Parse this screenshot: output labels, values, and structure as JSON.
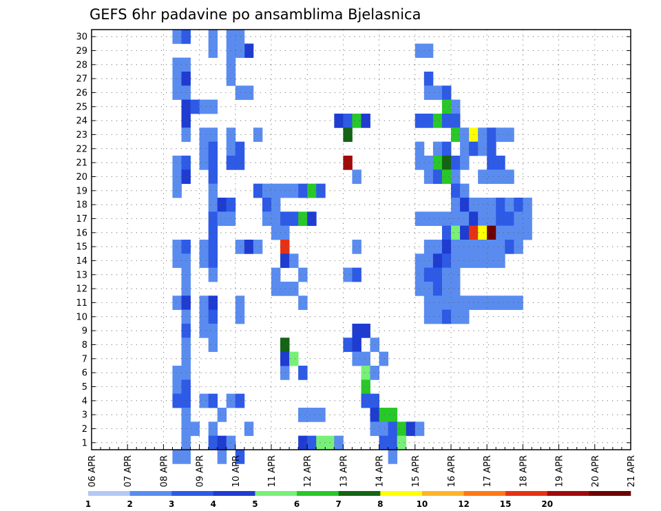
{
  "chart_data": {
    "type": "heatmap",
    "title": "GEFS 6hr padavine po ansamblima Bjelasnica",
    "xlabel": "",
    "ylabel": "",
    "x_ticks": [
      "06 APR",
      "07 APR",
      "08 APR",
      "09 APR",
      "10 APR",
      "11 APR",
      "12 APR",
      "13 APR",
      "14 APR",
      "15 APR",
      "16 APR",
      "17 APR",
      "18 APR",
      "19 APR",
      "20 APR",
      "21 APR"
    ],
    "x_range": [
      "06 APR 00",
      "21 APR 00"
    ],
    "time_step_hours": 6,
    "y_ticks": [
      1,
      2,
      3,
      4,
      5,
      6,
      7,
      8,
      9,
      10,
      11,
      12,
      13,
      14,
      15,
      16,
      17,
      18,
      19,
      20,
      21,
      22,
      23,
      24,
      25,
      26,
      27,
      28,
      29,
      30
    ],
    "ylim": [
      0.5,
      30.5
    ],
    "grid": true,
    "colorbar": {
      "position": "bottom",
      "boundaries": [
        1,
        2,
        3,
        4,
        5,
        6,
        7,
        8,
        10,
        12,
        15,
        20
      ],
      "labels": [
        "1",
        "2",
        "3",
        "4",
        "5",
        "6",
        "7",
        "8",
        "10",
        "12",
        "15",
        "20"
      ],
      "colors": [
        "#b4c8f5",
        "#5a8cf0",
        "#2d5ae6",
        "#1e3cd2",
        "#78f078",
        "#28c828",
        "#146414",
        "#ffff00",
        "#ffb428",
        "#ff7814",
        "#e63214",
        "#a00a0a",
        "#6e0000"
      ]
    },
    "cells_note": "each cell = [time_index_from_06_APR_00_in_6h_steps, member, color_class_index]",
    "cells": [
      [
        9,
        30,
        1
      ],
      [
        10,
        30,
        2
      ],
      [
        13,
        30,
        1
      ],
      [
        15,
        30,
        1
      ],
      [
        16,
        30,
        1
      ],
      [
        16,
        29,
        1
      ],
      [
        17,
        29,
        3
      ],
      [
        13,
        29,
        1
      ],
      [
        15,
        29,
        1
      ],
      [
        16,
        29,
        1
      ],
      [
        9,
        28,
        1
      ],
      [
        10,
        28,
        1
      ],
      [
        15,
        28,
        1
      ],
      [
        9,
        27,
        1
      ],
      [
        10,
        27,
        3
      ],
      [
        15,
        27,
        1
      ],
      [
        9,
        26,
        1
      ],
      [
        10,
        26,
        1
      ],
      [
        16,
        26,
        1
      ],
      [
        17,
        26,
        1
      ],
      [
        10,
        25,
        3
      ],
      [
        11,
        25,
        2
      ],
      [
        12,
        25,
        1
      ],
      [
        13,
        25,
        1
      ],
      [
        10,
        24,
        3
      ],
      [
        10,
        23,
        1
      ],
      [
        12,
        23,
        1
      ],
      [
        13,
        23,
        1
      ],
      [
        15,
        23,
        1
      ],
      [
        18,
        23,
        1
      ],
      [
        12,
        22,
        1
      ],
      [
        13,
        22,
        2
      ],
      [
        15,
        22,
        1
      ],
      [
        16,
        22,
        2
      ],
      [
        9,
        21,
        1
      ],
      [
        10,
        21,
        2
      ],
      [
        12,
        21,
        1
      ],
      [
        13,
        21,
        2
      ],
      [
        15,
        21,
        2
      ],
      [
        16,
        21,
        2
      ],
      [
        9,
        20,
        1
      ],
      [
        10,
        20,
        3
      ],
      [
        13,
        20,
        2
      ],
      [
        9,
        19,
        1
      ],
      [
        13,
        19,
        1
      ],
      [
        13,
        18,
        1
      ],
      [
        14,
        18,
        3
      ],
      [
        15,
        18,
        2
      ],
      [
        13,
        17,
        2
      ],
      [
        14,
        17,
        1
      ],
      [
        15,
        17,
        1
      ],
      [
        13,
        16,
        2
      ],
      [
        9,
        15,
        1
      ],
      [
        10,
        15,
        2
      ],
      [
        12,
        15,
        1
      ],
      [
        13,
        15,
        2
      ],
      [
        16,
        15,
        1
      ],
      [
        17,
        15,
        3
      ],
      [
        18,
        15,
        1
      ],
      [
        9,
        14,
        1
      ],
      [
        10,
        14,
        1
      ],
      [
        12,
        14,
        1
      ],
      [
        13,
        14,
        2
      ],
      [
        10,
        13,
        1
      ],
      [
        13,
        13,
        1
      ],
      [
        10,
        12,
        1
      ],
      [
        9,
        11,
        1
      ],
      [
        10,
        11,
        3
      ],
      [
        12,
        11,
        1
      ],
      [
        13,
        11,
        3
      ],
      [
        16,
        11,
        1
      ],
      [
        10,
        10,
        1
      ],
      [
        12,
        10,
        1
      ],
      [
        13,
        10,
        2
      ],
      [
        16,
        10,
        1
      ],
      [
        10,
        9,
        2
      ],
      [
        12,
        9,
        1
      ],
      [
        13,
        9,
        1
      ],
      [
        10,
        8,
        1
      ],
      [
        13,
        8,
        1
      ],
      [
        10,
        7,
        1
      ],
      [
        9,
        6,
        1
      ],
      [
        10,
        6,
        1
      ],
      [
        9,
        5,
        1
      ],
      [
        10,
        5,
        2
      ],
      [
        9,
        4,
        2
      ],
      [
        10,
        4,
        2
      ],
      [
        12,
        4,
        1
      ],
      [
        13,
        4,
        2
      ],
      [
        15,
        4,
        1
      ],
      [
        16,
        4,
        2
      ],
      [
        10,
        3,
        1
      ],
      [
        14,
        3,
        1
      ],
      [
        10,
        2,
        1
      ],
      [
        11,
        2,
        1
      ],
      [
        13,
        2,
        1
      ],
      [
        17,
        2,
        1
      ],
      [
        10,
        1,
        1
      ],
      [
        13,
        1,
        2
      ],
      [
        14,
        1,
        3
      ],
      [
        15,
        1,
        1
      ],
      [
        9,
        0,
        1
      ],
      [
        10,
        0,
        1
      ],
      [
        14,
        0,
        1
      ],
      [
        16,
        0,
        2
      ],
      [
        23,
        1,
        3
      ],
      [
        24,
        1,
        2
      ],
      [
        25,
        1,
        4
      ],
      [
        26,
        1,
        4
      ],
      [
        27,
        1,
        1
      ],
      [
        23,
        3,
        1
      ],
      [
        25,
        3,
        1
      ],
      [
        21,
        6,
        1
      ],
      [
        21,
        7,
        3
      ],
      [
        21,
        8,
        6
      ],
      [
        22,
        7,
        4
      ],
      [
        18,
        19,
        2
      ],
      [
        19,
        19,
        1
      ],
      [
        20,
        19,
        1
      ],
      [
        21,
        19,
        1
      ],
      [
        22,
        19,
        1
      ],
      [
        23,
        19,
        2
      ],
      [
        24,
        19,
        5
      ],
      [
        25,
        19,
        2
      ],
      [
        19,
        18,
        2
      ],
      [
        20,
        18,
        1
      ],
      [
        19,
        17,
        1
      ],
      [
        20,
        17,
        1
      ],
      [
        21,
        17,
        2
      ],
      [
        22,
        17,
        2
      ],
      [
        23,
        17,
        5
      ],
      [
        24,
        17,
        3
      ],
      [
        20,
        16,
        1
      ],
      [
        21,
        16,
        1
      ],
      [
        21,
        15,
        10
      ],
      [
        21,
        14,
        3
      ],
      [
        22,
        14,
        1
      ],
      [
        20,
        13,
        1
      ],
      [
        23,
        13,
        1
      ],
      [
        20,
        12,
        1
      ],
      [
        21,
        12,
        1
      ],
      [
        22,
        12,
        1
      ],
      [
        23,
        11,
        1
      ],
      [
        23,
        6,
        2
      ],
      [
        23,
        3,
        1
      ],
      [
        24,
        3,
        1
      ],
      [
        27,
        24,
        3
      ],
      [
        28,
        24,
        2
      ],
      [
        29,
        24,
        5
      ],
      [
        30,
        24,
        3
      ],
      [
        28,
        23,
        6
      ],
      [
        28,
        21,
        11
      ],
      [
        29,
        20,
        1
      ],
      [
        29,
        15,
        1
      ],
      [
        28,
        13,
        1
      ],
      [
        29,
        13,
        2
      ],
      [
        29,
        9,
        3
      ],
      [
        30,
        9,
        3
      ],
      [
        28,
        8,
        2
      ],
      [
        29,
        8,
        3
      ],
      [
        31,
        8,
        1
      ],
      [
        29,
        7,
        1
      ],
      [
        30,
        7,
        1
      ],
      [
        32,
        7,
        1
      ],
      [
        30,
        6,
        4
      ],
      [
        31,
        6,
        1
      ],
      [
        30,
        5,
        5
      ],
      [
        30,
        4,
        2
      ],
      [
        31,
        4,
        2
      ],
      [
        31,
        3,
        3
      ],
      [
        32,
        3,
        5
      ],
      [
        33,
        3,
        5
      ],
      [
        31,
        2,
        1
      ],
      [
        32,
        2,
        1
      ],
      [
        33,
        2,
        2
      ],
      [
        34,
        2,
        5
      ],
      [
        35,
        2,
        3
      ],
      [
        36,
        2,
        1
      ],
      [
        32,
        1,
        2
      ],
      [
        33,
        1,
        2
      ],
      [
        34,
        1,
        4
      ],
      [
        33,
        0,
        1
      ],
      [
        36,
        29,
        1
      ],
      [
        37,
        29,
        1
      ],
      [
        37,
        27,
        2
      ],
      [
        37,
        26,
        1
      ],
      [
        38,
        26,
        1
      ],
      [
        39,
        26,
        2
      ],
      [
        39,
        25,
        5
      ],
      [
        40,
        25,
        1
      ],
      [
        36,
        24,
        2
      ],
      [
        37,
        24,
        2
      ],
      [
        38,
        24,
        5
      ],
      [
        39,
        24,
        2
      ],
      [
        40,
        24,
        2
      ],
      [
        40,
        23,
        5
      ],
      [
        41,
        23,
        1
      ],
      [
        42,
        23,
        7
      ],
      [
        43,
        23,
        1
      ],
      [
        44,
        23,
        2
      ],
      [
        45,
        23,
        1
      ],
      [
        46,
        23,
        1
      ],
      [
        36,
        22,
        1
      ],
      [
        38,
        22,
        1
      ],
      [
        39,
        22,
        2
      ],
      [
        41,
        22,
        1
      ],
      [
        42,
        22,
        2
      ],
      [
        43,
        22,
        1
      ],
      [
        44,
        22,
        2
      ],
      [
        36,
        21,
        1
      ],
      [
        37,
        21,
        1
      ],
      [
        38,
        21,
        5
      ],
      [
        39,
        21,
        6
      ],
      [
        40,
        21,
        2
      ],
      [
        41,
        21,
        1
      ],
      [
        44,
        21,
        2
      ],
      [
        45,
        21,
        2
      ],
      [
        37,
        20,
        1
      ],
      [
        38,
        20,
        2
      ],
      [
        39,
        20,
        5
      ],
      [
        40,
        20,
        1
      ],
      [
        43,
        20,
        1
      ],
      [
        44,
        20,
        1
      ],
      [
        45,
        20,
        1
      ],
      [
        46,
        20,
        1
      ],
      [
        40,
        19,
        2
      ],
      [
        41,
        19,
        1
      ],
      [
        40,
        18,
        1
      ],
      [
        41,
        18,
        3
      ],
      [
        42,
        18,
        1
      ],
      [
        43,
        18,
        1
      ],
      [
        44,
        18,
        1
      ],
      [
        45,
        18,
        2
      ],
      [
        46,
        18,
        1
      ],
      [
        47,
        18,
        2
      ],
      [
        48,
        18,
        1
      ],
      [
        36,
        17,
        1
      ],
      [
        37,
        17,
        1
      ],
      [
        38,
        17,
        1
      ],
      [
        39,
        17,
        1
      ],
      [
        40,
        17,
        1
      ],
      [
        41,
        17,
        1
      ],
      [
        42,
        17,
        3
      ],
      [
        43,
        17,
        1
      ],
      [
        44,
        17,
        1
      ],
      [
        45,
        17,
        2
      ],
      [
        46,
        17,
        2
      ],
      [
        47,
        17,
        1
      ],
      [
        48,
        17,
        1
      ],
      [
        39,
        16,
        2
      ],
      [
        40,
        16,
        4
      ],
      [
        41,
        16,
        3
      ],
      [
        42,
        16,
        10
      ],
      [
        43,
        16,
        7
      ],
      [
        44,
        16,
        12
      ],
      [
        45,
        16,
        1
      ],
      [
        46,
        16,
        1
      ],
      [
        47,
        16,
        1
      ],
      [
        48,
        16,
        1
      ],
      [
        37,
        15,
        1
      ],
      [
        38,
        15,
        1
      ],
      [
        39,
        15,
        3
      ],
      [
        40,
        15,
        1
      ],
      [
        41,
        15,
        1
      ],
      [
        42,
        15,
        1
      ],
      [
        43,
        15,
        1
      ],
      [
        44,
        15,
        1
      ],
      [
        45,
        15,
        1
      ],
      [
        46,
        15,
        2
      ],
      [
        47,
        15,
        1
      ],
      [
        36,
        14,
        1
      ],
      [
        37,
        14,
        1
      ],
      [
        38,
        14,
        3
      ],
      [
        39,
        14,
        2
      ],
      [
        40,
        14,
        1
      ],
      [
        41,
        14,
        1
      ],
      [
        42,
        14,
        1
      ],
      [
        43,
        14,
        1
      ],
      [
        44,
        14,
        1
      ],
      [
        45,
        14,
        1
      ],
      [
        36,
        13,
        1
      ],
      [
        37,
        13,
        2
      ],
      [
        38,
        13,
        2
      ],
      [
        39,
        13,
        1
      ],
      [
        40,
        13,
        1
      ],
      [
        36,
        12,
        1
      ],
      [
        37,
        12,
        1
      ],
      [
        38,
        12,
        2
      ],
      [
        39,
        12,
        1
      ],
      [
        40,
        12,
        1
      ],
      [
        37,
        11,
        1
      ],
      [
        38,
        11,
        1
      ],
      [
        39,
        11,
        1
      ],
      [
        40,
        11,
        1
      ],
      [
        41,
        11,
        1
      ],
      [
        42,
        11,
        1
      ],
      [
        43,
        11,
        1
      ],
      [
        44,
        11,
        1
      ],
      [
        45,
        11,
        1
      ],
      [
        46,
        11,
        1
      ],
      [
        47,
        11,
        1
      ],
      [
        37,
        10,
        1
      ],
      [
        38,
        10,
        1
      ],
      [
        39,
        10,
        2
      ],
      [
        40,
        10,
        1
      ],
      [
        41,
        10,
        1
      ]
    ]
  }
}
